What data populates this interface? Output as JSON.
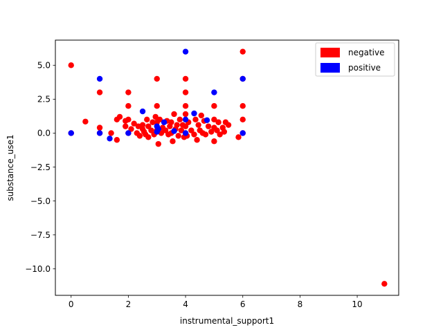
{
  "chart_data": {
    "type": "scatter",
    "title": "",
    "xlabel": "instrumental_support1",
    "ylabel": "substance_use1",
    "xlim": [
      -0.55,
      11.45
    ],
    "ylim": [
      -11.95,
      6.85
    ],
    "x_ticks": [
      0,
      2,
      4,
      6,
      8,
      10
    ],
    "x_tick_labels": [
      "0",
      "2",
      "4",
      "6",
      "8",
      "10"
    ],
    "y_ticks": [
      5.0,
      2.5,
      0.0,
      -2.5,
      -5.0,
      -7.5,
      -10.0
    ],
    "y_tick_labels": [
      "5.0",
      "2.5",
      "0.0",
      "−2.5",
      "−5.0",
      "−7.5",
      "−10.0"
    ],
    "grid": false,
    "legend": {
      "placement": "top-right",
      "entries": [
        {
          "label": "negative",
          "color": "#ff0000"
        },
        {
          "label": "positive",
          "color": "#0000ff"
        }
      ]
    },
    "series": [
      {
        "name": "negative",
        "color": "#ff0000",
        "points": [
          [
            0,
            5
          ],
          [
            0,
            0
          ],
          [
            0.5,
            0.85
          ],
          [
            1,
            3
          ],
          [
            1,
            0.4
          ],
          [
            1,
            0
          ],
          [
            1.4,
            0
          ],
          [
            1.6,
            -0.5
          ],
          [
            1.6,
            1.0
          ],
          [
            1.7,
            1.2
          ],
          [
            1.9,
            0.5
          ],
          [
            1.9,
            0.9
          ],
          [
            2,
            3
          ],
          [
            2,
            2
          ],
          [
            2,
            1.0
          ],
          [
            2,
            0
          ],
          [
            2.1,
            0.3
          ],
          [
            2.2,
            0.7
          ],
          [
            2.3,
            0.0
          ],
          [
            2.35,
            0.5
          ],
          [
            2.4,
            -0.2
          ],
          [
            2.5,
            0.3
          ],
          [
            2.5,
            0.6
          ],
          [
            2.55,
            0.1
          ],
          [
            2.6,
            -0.1
          ],
          [
            2.65,
            1.0
          ],
          [
            2.7,
            0.5
          ],
          [
            2.7,
            -0.3
          ],
          [
            2.8,
            0.2
          ],
          [
            2.85,
            0.8
          ],
          [
            2.9,
            -0.1
          ],
          [
            2.95,
            1.2
          ],
          [
            3,
            4
          ],
          [
            3,
            2
          ],
          [
            3,
            0.8
          ],
          [
            3,
            0.2
          ],
          [
            3.05,
            -0.8
          ],
          [
            3.1,
            1.0
          ],
          [
            3.15,
            0.0
          ],
          [
            3.2,
            0.4
          ],
          [
            3.3,
            0.2
          ],
          [
            3.35,
            0.9
          ],
          [
            3.4,
            -0.1
          ],
          [
            3.45,
            0.5
          ],
          [
            3.5,
            0.0
          ],
          [
            3.5,
            0.8
          ],
          [
            3.55,
            -0.6
          ],
          [
            3.6,
            1.4
          ],
          [
            3.65,
            0.3
          ],
          [
            3.7,
            0.6
          ],
          [
            3.75,
            -0.2
          ],
          [
            3.8,
            1.0
          ],
          [
            3.85,
            0.2
          ],
          [
            3.9,
            0.6
          ],
          [
            3.95,
            -0.3
          ],
          [
            4,
            4
          ],
          [
            4,
            3
          ],
          [
            4,
            2
          ],
          [
            4,
            1.4
          ],
          [
            4,
            0.5
          ],
          [
            4,
            0
          ],
          [
            4.05,
            -0.2
          ],
          [
            4.1,
            0.8
          ],
          [
            4.2,
            0.2
          ],
          [
            4.3,
            -0.1
          ],
          [
            4.35,
            1.0
          ],
          [
            4.4,
            -0.5
          ],
          [
            4.45,
            0.6
          ],
          [
            4.5,
            0.2
          ],
          [
            4.55,
            1.3
          ],
          [
            4.6,
            0.0
          ],
          [
            4.65,
            0.9
          ],
          [
            4.7,
            -0.1
          ],
          [
            4.8,
            0.5
          ],
          [
            4.9,
            0.1
          ],
          [
            5,
            2
          ],
          [
            5,
            1.0
          ],
          [
            5,
            0.4
          ],
          [
            5,
            -0.6
          ],
          [
            5.1,
            0.2
          ],
          [
            5.15,
            0.8
          ],
          [
            5.2,
            -0.1
          ],
          [
            5.3,
            0.4
          ],
          [
            5.35,
            0.1
          ],
          [
            5.4,
            0.8
          ],
          [
            5.5,
            0.6
          ],
          [
            5.85,
            -0.3
          ],
          [
            6,
            6
          ],
          [
            6,
            4
          ],
          [
            6,
            2
          ],
          [
            6,
            1
          ],
          [
            6,
            0
          ],
          [
            10.95,
            -11.1
          ]
        ]
      },
      {
        "name": "positive",
        "color": "#0000ff",
        "points": [
          [
            0,
            0
          ],
          [
            1,
            4
          ],
          [
            1,
            0
          ],
          [
            1.35,
            -0.4
          ],
          [
            2,
            0
          ],
          [
            2.5,
            1.6
          ],
          [
            3,
            0.5
          ],
          [
            3,
            0.1
          ],
          [
            3.05,
            0.3
          ],
          [
            3.25,
            0.8
          ],
          [
            3.6,
            0.15
          ],
          [
            4,
            6
          ],
          [
            4,
            1.0
          ],
          [
            4,
            0
          ],
          [
            4.3,
            1.45
          ],
          [
            4.75,
            0.95
          ],
          [
            5,
            3
          ],
          [
            6,
            4
          ],
          [
            6,
            0
          ]
        ]
      }
    ]
  }
}
